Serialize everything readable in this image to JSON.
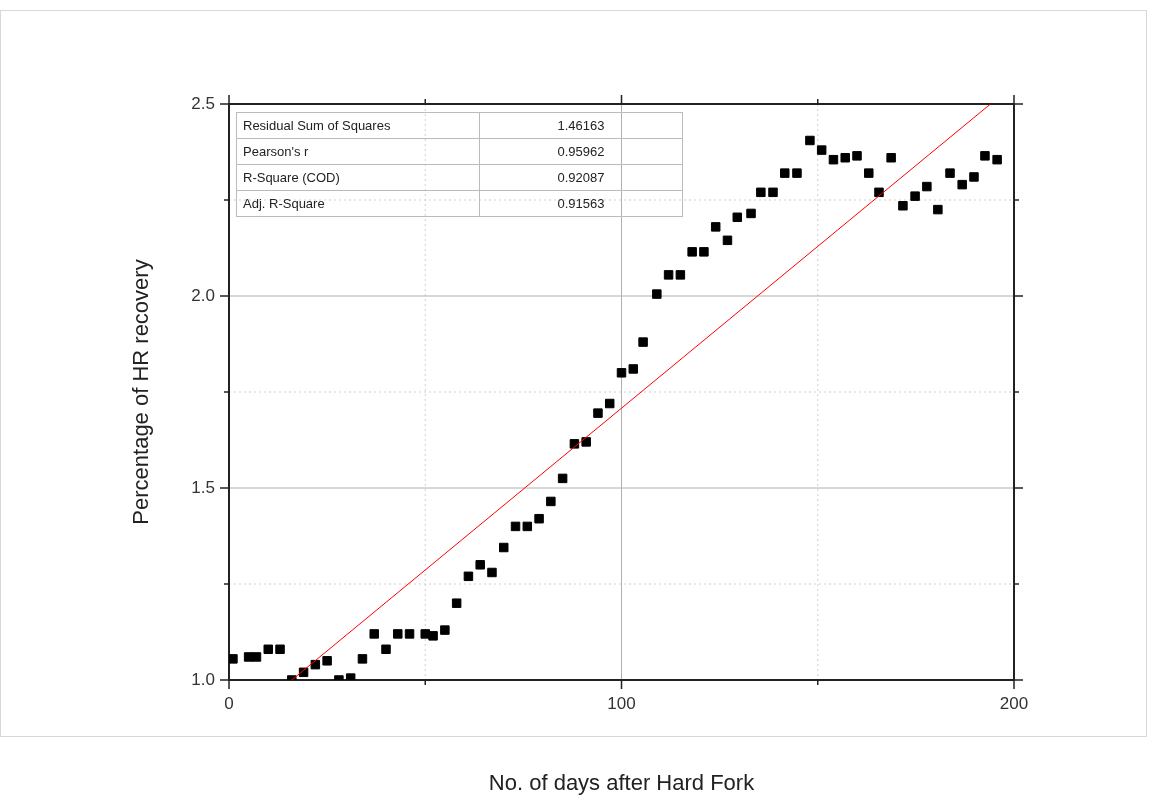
{
  "chart_data": {
    "type": "scatter",
    "xlabel": "No. of days after Hard Fork",
    "ylabel": "Percentage of HR recovery",
    "xlim": [
      0,
      200
    ],
    "xticks": [
      0,
      {
        "value": 50,
        "label": null
      },
      100,
      {
        "value": 150,
        "label": null
      },
      200
    ],
    "ylim": [
      1.0,
      2.5
    ],
    "yticks": [
      {
        "value": 1.0,
        "label": "1.0"
      },
      {
        "value": 1.25,
        "label": null
      },
      {
        "value": 1.5,
        "label": "1.5"
      },
      {
        "value": 1.75,
        "label": null
      },
      {
        "value": 2.0,
        "label": "2.0"
      },
      {
        "value": 2.25,
        "label": null
      },
      {
        "value": 2.5,
        "label": "2.5"
      }
    ],
    "grid": true,
    "legend": false,
    "marker": "square",
    "annotations": [
      "Residual Sum of Squares",
      "1.46163",
      "Pearson's r",
      "0.95962",
      "R-Square (COD)",
      "0.92087",
      "Adj. R-Square",
      "0.91563"
    ],
    "series": [
      {
        "color": "#000000",
        "x": [
          1,
          5,
          7,
          10,
          13,
          16,
          19,
          22,
          25,
          28,
          31,
          34,
          37,
          40,
          43,
          46,
          50,
          52,
          55,
          58,
          61,
          64,
          67,
          70,
          73,
          76,
          79,
          82,
          85,
          88,
          91,
          94,
          97,
          100,
          103,
          105.5,
          109,
          112,
          115,
          118,
          121,
          124,
          127,
          129.5,
          133,
          135.5,
          138.6,
          141.6,
          144.7,
          148,
          151,
          154,
          157,
          160,
          163,
          165.6,
          168.7,
          171.7,
          174.8,
          177.8,
          180.6,
          183.7,
          186.8,
          189.8,
          192.6,
          195.7
        ],
        "values": [
          1.055,
          1.06,
          1.06,
          1.08,
          1.08,
          1.0,
          1.02,
          1.04,
          1.05,
          1.0,
          1.005,
          1.055,
          1.12,
          1.08,
          1.12,
          1.12,
          1.12,
          1.115,
          1.13,
          1.2,
          1.27,
          1.3,
          1.28,
          1.345,
          1.4,
          1.4,
          1.42,
          1.465,
          1.525,
          1.615,
          1.62,
          1.695,
          1.72,
          1.8,
          1.81,
          1.88,
          2.005,
          2.055,
          2.055,
          2.115,
          2.115,
          2.18,
          2.145,
          2.205,
          2.215,
          2.27,
          2.27,
          2.32,
          2.32,
          2.405,
          2.38,
          2.355,
          2.36,
          2.365,
          2.32,
          2.27,
          2.36,
          2.235,
          2.26,
          2.285,
          2.225,
          2.32,
          2.29,
          2.31,
          2.365,
          2.355
        ]
      },
      {
        "type": "line",
        "color": "#ff0000",
        "marker": "none",
        "x": [
          16,
          194
        ],
        "values": [
          1.0,
          2.5
        ]
      }
    ]
  }
}
